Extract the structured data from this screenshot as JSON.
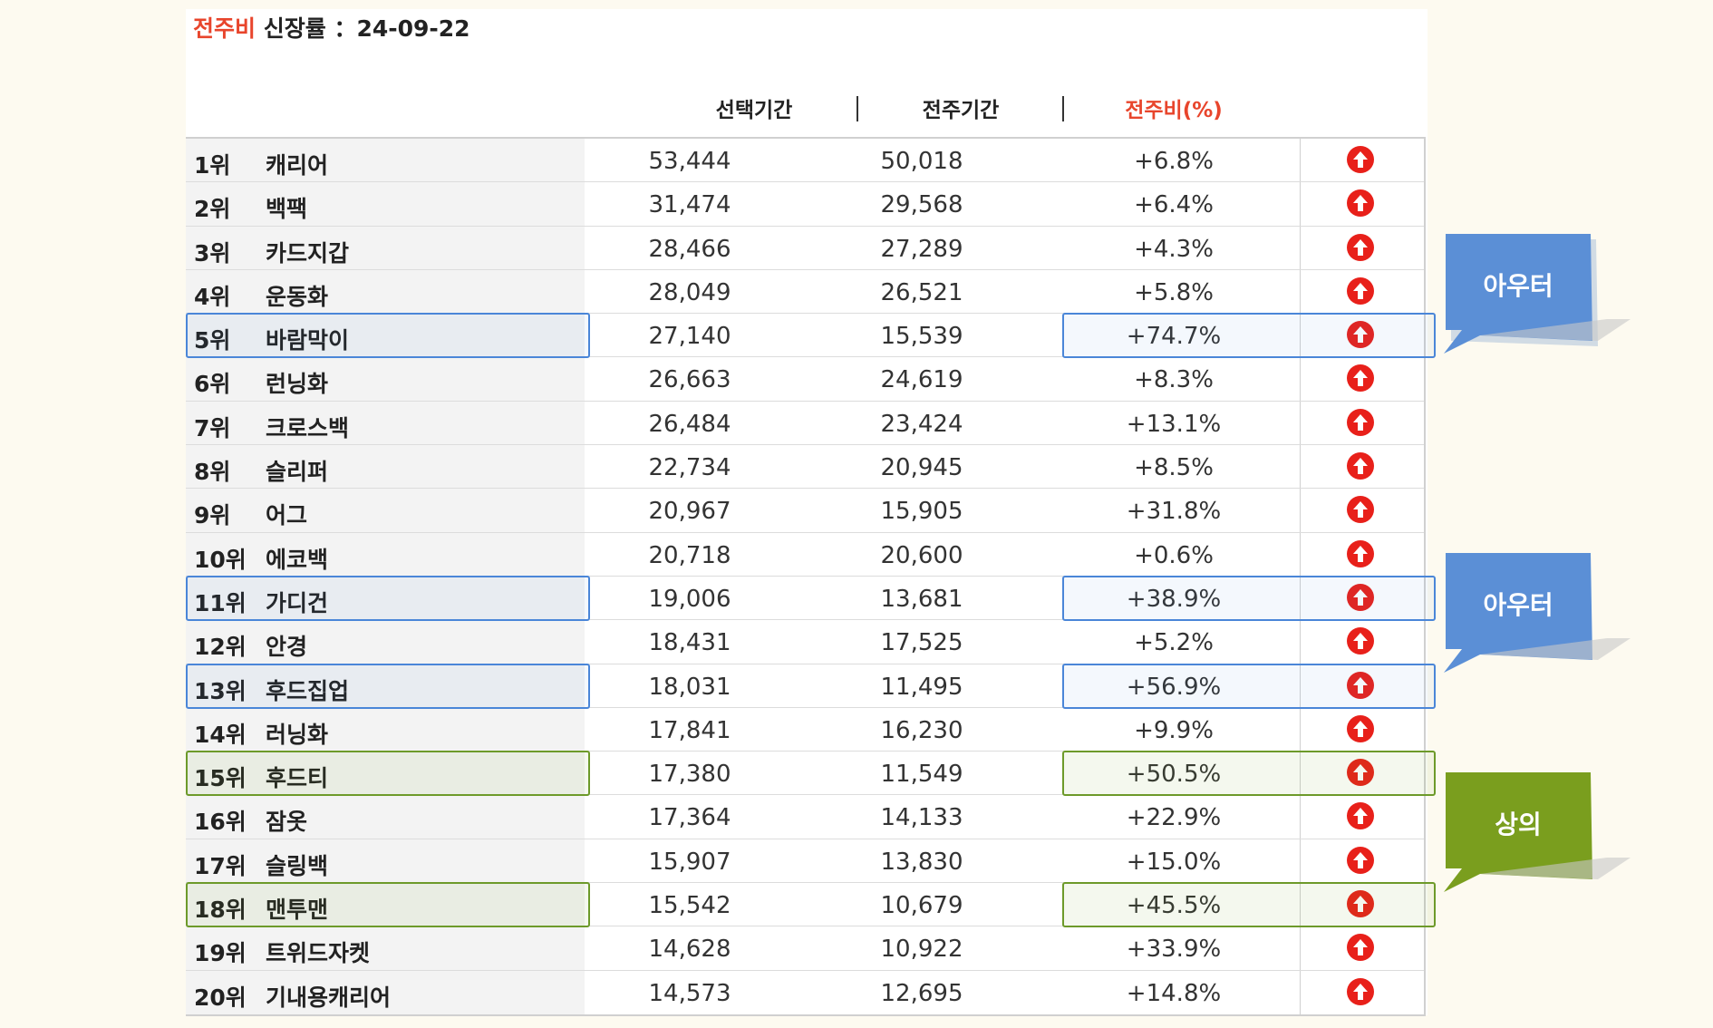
{
  "title": {
    "accent": "전주비",
    "text": "신장률 ：24-09-22"
  },
  "columns": {
    "selected": "선택기간",
    "prev": "전주기간",
    "ratio": "전주비(%)",
    "separator": "|"
  },
  "rows": [
    {
      "rank": "1위",
      "name": "캐리어",
      "selected": "53,444",
      "prev": "50,018",
      "ratio": "+6.8%"
    },
    {
      "rank": "2위",
      "name": "백팩",
      "selected": "31,474",
      "prev": "29,568",
      "ratio": "+6.4%"
    },
    {
      "rank": "3위",
      "name": "카드지갑",
      "selected": "28,466",
      "prev": "27,289",
      "ratio": "+4.3%"
    },
    {
      "rank": "4위",
      "name": "운동화",
      "selected": "28,049",
      "prev": "26,521",
      "ratio": "+5.8%"
    },
    {
      "rank": "5위",
      "name": "바람막이",
      "selected": "27,140",
      "prev": "15,539",
      "ratio": "+74.7%"
    },
    {
      "rank": "6위",
      "name": "런닝화",
      "selected": "26,663",
      "prev": "24,619",
      "ratio": "+8.3%"
    },
    {
      "rank": "7위",
      "name": "크로스백",
      "selected": "26,484",
      "prev": "23,424",
      "ratio": "+13.1%"
    },
    {
      "rank": "8위",
      "name": "슬리퍼",
      "selected": "22,734",
      "prev": "20,945",
      "ratio": "+8.5%"
    },
    {
      "rank": "9위",
      "name": "어그",
      "selected": "20,967",
      "prev": "15,905",
      "ratio": "+31.8%"
    },
    {
      "rank": "10위",
      "name": "에코백",
      "selected": "20,718",
      "prev": "20,600",
      "ratio": "+0.6%"
    },
    {
      "rank": "11위",
      "name": "가디건",
      "selected": "19,006",
      "prev": "13,681",
      "ratio": "+38.9%"
    },
    {
      "rank": "12위",
      "name": "안경",
      "selected": "18,431",
      "prev": "17,525",
      "ratio": "+5.2%"
    },
    {
      "rank": "13위",
      "name": "후드집업",
      "selected": "18,031",
      "prev": "11,495",
      "ratio": "+56.9%"
    },
    {
      "rank": "14위",
      "name": "러닝화",
      "selected": "17,841",
      "prev": "16,230",
      "ratio": "+9.9%"
    },
    {
      "rank": "15위",
      "name": "후드티",
      "selected": "17,380",
      "prev": "11,549",
      "ratio": "+50.5%"
    },
    {
      "rank": "16위",
      "name": "잠옷",
      "selected": "17,364",
      "prev": "14,133",
      "ratio": "+22.9%"
    },
    {
      "rank": "17위",
      "name": "슬링백",
      "selected": "15,907",
      "prev": "13,830",
      "ratio": "+15.0%"
    },
    {
      "rank": "18위",
      "name": "맨투맨",
      "selected": "15,542",
      "prev": "10,679",
      "ratio": "+45.5%"
    },
    {
      "rank": "19위",
      "name": "트위드자켓",
      "selected": "14,628",
      "prev": "10,922",
      "ratio": "+33.9%"
    },
    {
      "rank": "20위",
      "name": "기내용캐리어",
      "selected": "14,573",
      "prev": "12,695",
      "ratio": "+14.8%"
    }
  ],
  "trend_icon": "arrow-up-circle-icon",
  "callouts": [
    {
      "label": "아우터",
      "color": "#5b8fd6"
    },
    {
      "label": "아우터",
      "color": "#5b8fd6"
    },
    {
      "label": "상의",
      "color": "#7a9e1e"
    }
  ],
  "colors": {
    "accent": "#e8452c",
    "arrow": "#e8201a",
    "outer_highlight": "#4a86d8",
    "top_highlight": "#6d9a2a"
  }
}
